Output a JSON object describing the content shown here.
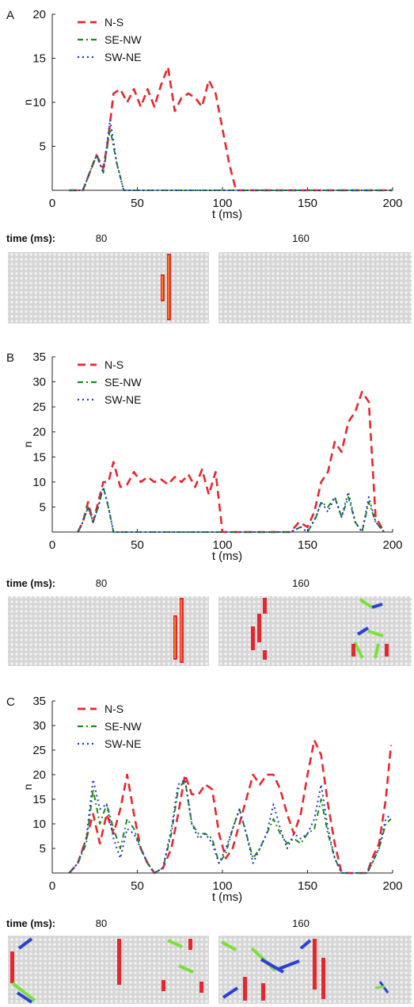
{
  "colors": {
    "ns": "#e8262d",
    "senw": "#1a8a1a",
    "swne": "#2236c8",
    "lattice_bg": "#d6d6d6",
    "lattice_dot": "#f2f2f2",
    "seg_orange": "#f4a11c",
    "seg_green": "#7be03a",
    "seg_blue": "#2a3fd6"
  },
  "time_label": "time (ms):",
  "chart_data": [
    {
      "type": "line",
      "panel_letter": "A",
      "xlabel": "t (ms)",
      "ylabel": "n",
      "xlim": [
        0,
        200
      ],
      "ylim": [
        0,
        20
      ],
      "xticks": [
        0,
        50,
        100,
        150,
        200
      ],
      "yticks": [
        5,
        10,
        15,
        20
      ],
      "grid": false,
      "legend_position": "top-left",
      "snapshot_times": [
        "80",
        "160"
      ],
      "series": [
        {
          "name": "N-S",
          "color": "#e8262d",
          "dash": "10,6",
          "points": [
            [
              10,
              0
            ],
            [
              18,
              0
            ],
            [
              22,
              2
            ],
            [
              26,
              4
            ],
            [
              30,
              2.5
            ],
            [
              33,
              6
            ],
            [
              36,
              11
            ],
            [
              40,
              11.5
            ],
            [
              44,
              10
            ],
            [
              48,
              11.5
            ],
            [
              52,
              9.5
            ],
            [
              56,
              11.5
            ],
            [
              60,
              9.5
            ],
            [
              64,
              12
            ],
            [
              68,
              14
            ],
            [
              72,
              9
            ],
            [
              76,
              10.5
            ],
            [
              80,
              11
            ],
            [
              84,
              10.5
            ],
            [
              88,
              9.5
            ],
            [
              92,
              12.5
            ],
            [
              96,
              11
            ],
            [
              100,
              7
            ],
            [
              104,
              3
            ],
            [
              108,
              0
            ],
            [
              120,
              0
            ],
            [
              200,
              0
            ]
          ]
        },
        {
          "name": "SE-NW",
          "color": "#1a8a1a",
          "dash": "7,4,2,4",
          "points": [
            [
              10,
              0
            ],
            [
              18,
              0
            ],
            [
              22,
              2
            ],
            [
              26,
              4
            ],
            [
              30,
              2
            ],
            [
              34,
              7
            ],
            [
              38,
              3
            ],
            [
              42,
              0
            ],
            [
              200,
              0
            ]
          ]
        },
        {
          "name": "SW-NE",
          "color": "#2236c8",
          "dash": "2,4",
          "points": [
            [
              10,
              0
            ],
            [
              18,
              0
            ],
            [
              22,
              2
            ],
            [
              26,
              4
            ],
            [
              30,
              2
            ],
            [
              34,
              8
            ],
            [
              38,
              3
            ],
            [
              42,
              0
            ],
            [
              200,
              0
            ]
          ]
        }
      ]
    },
    {
      "type": "line",
      "panel_letter": "B",
      "xlabel": "t (ms)",
      "ylabel": "n",
      "xlim": [
        0,
        200
      ],
      "ylim": [
        0,
        35
      ],
      "xticks": [
        0,
        50,
        100,
        150,
        200
      ],
      "yticks": [
        5,
        10,
        15,
        20,
        25,
        30,
        35
      ],
      "grid": false,
      "legend_position": "top-left",
      "snapshot_times": [
        "80",
        "160"
      ],
      "series": [
        {
          "name": "N-S",
          "color": "#e8262d",
          "dash": "10,6",
          "points": [
            [
              15,
              0
            ],
            [
              18,
              2
            ],
            [
              21,
              6
            ],
            [
              24,
              2
            ],
            [
              27,
              6
            ],
            [
              30,
              10
            ],
            [
              33,
              10
            ],
            [
              36,
              14
            ],
            [
              40,
              9
            ],
            [
              44,
              9.5
            ],
            [
              48,
              12
            ],
            [
              52,
              10
            ],
            [
              56,
              11
            ],
            [
              60,
              10
            ],
            [
              64,
              10.5
            ],
            [
              68,
              9.5
            ],
            [
              72,
              11
            ],
            [
              76,
              10
            ],
            [
              80,
              11.5
            ],
            [
              84,
              9
            ],
            [
              88,
              12.5
            ],
            [
              92,
              7.5
            ],
            [
              96,
              12
            ],
            [
              100,
              0
            ],
            [
              140,
              0
            ],
            [
              145,
              2
            ],
            [
              150,
              1
            ],
            [
              154,
              4
            ],
            [
              158,
              10
            ],
            [
              162,
              12
            ],
            [
              166,
              18
            ],
            [
              170,
              16
            ],
            [
              174,
              22
            ],
            [
              178,
              24
            ],
            [
              182,
              28
            ],
            [
              186,
              26
            ],
            [
              190,
              3
            ],
            [
              195,
              0
            ]
          ]
        },
        {
          "name": "SE-NW",
          "color": "#1a8a1a",
          "dash": "7,4,2,4",
          "points": [
            [
              15,
              0
            ],
            [
              18,
              2
            ],
            [
              21,
              5
            ],
            [
              24,
              2
            ],
            [
              27,
              5
            ],
            [
              30,
              9
            ],
            [
              33,
              5
            ],
            [
              36,
              0
            ],
            [
              140,
              0
            ],
            [
              146,
              1
            ],
            [
              150,
              0
            ],
            [
              155,
              3
            ],
            [
              158,
              6
            ],
            [
              162,
              5
            ],
            [
              166,
              7
            ],
            [
              170,
              3
            ],
            [
              174,
              7
            ],
            [
              178,
              2
            ],
            [
              182,
              0
            ],
            [
              186,
              6
            ],
            [
              190,
              2
            ],
            [
              195,
              0
            ]
          ]
        },
        {
          "name": "SW-NE",
          "color": "#2236c8",
          "dash": "2,4",
          "points": [
            [
              15,
              0
            ],
            [
              18,
              2
            ],
            [
              21,
              5
            ],
            [
              24,
              2
            ],
            [
              27,
              5
            ],
            [
              30,
              9
            ],
            [
              33,
              5
            ],
            [
              36,
              0
            ],
            [
              140,
              0
            ],
            [
              146,
              1
            ],
            [
              150,
              0
            ],
            [
              155,
              3
            ],
            [
              158,
              6
            ],
            [
              162,
              4
            ],
            [
              166,
              7
            ],
            [
              170,
              3
            ],
            [
              174,
              8
            ],
            [
              178,
              2
            ],
            [
              182,
              0
            ],
            [
              186,
              7
            ],
            [
              190,
              2
            ],
            [
              195,
              0
            ]
          ]
        }
      ]
    },
    {
      "type": "line",
      "panel_letter": "C",
      "xlabel": "t (ms)",
      "ylabel": "n",
      "xlim": [
        0,
        200
      ],
      "ylim": [
        0,
        35
      ],
      "xticks": [
        0,
        50,
        100,
        150,
        200
      ],
      "yticks": [
        5,
        10,
        15,
        20,
        25,
        30,
        35
      ],
      "grid": false,
      "legend_position": "top-left",
      "snapshot_times": [
        "80",
        "160"
      ],
      "series": [
        {
          "name": "N-S",
          "color": "#e8262d",
          "dash": "10,6",
          "points": [
            [
              10,
              0
            ],
            [
              15,
              2
            ],
            [
              20,
              7
            ],
            [
              24,
              12
            ],
            [
              28,
              6
            ],
            [
              32,
              12
            ],
            [
              36,
              8
            ],
            [
              40,
              13
            ],
            [
              44,
              20
            ],
            [
              48,
              12
            ],
            [
              52,
              5
            ],
            [
              56,
              2
            ],
            [
              60,
              0
            ],
            [
              65,
              1
            ],
            [
              70,
              5
            ],
            [
              74,
              12
            ],
            [
              78,
              20
            ],
            [
              82,
              16
            ],
            [
              86,
              16
            ],
            [
              90,
              18
            ],
            [
              94,
              17
            ],
            [
              98,
              8
            ],
            [
              102,
              3
            ],
            [
              106,
              5
            ],
            [
              110,
              10
            ],
            [
              114,
              15
            ],
            [
              118,
              20
            ],
            [
              122,
              18
            ],
            [
              126,
              20
            ],
            [
              130,
              20
            ],
            [
              134,
              17
            ],
            [
              138,
              12
            ],
            [
              142,
              8
            ],
            [
              146,
              12
            ],
            [
              150,
              20
            ],
            [
              154,
              27
            ],
            [
              158,
              24
            ],
            [
              162,
              14
            ],
            [
              166,
              6
            ],
            [
              170,
              0
            ],
            [
              185,
              0
            ],
            [
              188,
              3
            ],
            [
              192,
              6
            ],
            [
              196,
              15
            ],
            [
              199,
              26
            ]
          ]
        },
        {
          "name": "SE-NW",
          "color": "#1a8a1a",
          "dash": "7,4,2,4",
          "points": [
            [
              10,
              0
            ],
            [
              15,
              2
            ],
            [
              20,
              6
            ],
            [
              24,
              17
            ],
            [
              28,
              10
            ],
            [
              32,
              14
            ],
            [
              36,
              9
            ],
            [
              40,
              5
            ],
            [
              44,
              11
            ],
            [
              48,
              9
            ],
            [
              52,
              5
            ],
            [
              56,
              2
            ],
            [
              60,
              0
            ],
            [
              65,
              1
            ],
            [
              70,
              8
            ],
            [
              74,
              17
            ],
            [
              78,
              19
            ],
            [
              82,
              10
            ],
            [
              86,
              8
            ],
            [
              90,
              8
            ],
            [
              94,
              7
            ],
            [
              98,
              2
            ],
            [
              102,
              4
            ],
            [
              106,
              9
            ],
            [
              110,
              13
            ],
            [
              114,
              8
            ],
            [
              118,
              3
            ],
            [
              122,
              5
            ],
            [
              126,
              8
            ],
            [
              130,
              11
            ],
            [
              134,
              8
            ],
            [
              138,
              6
            ],
            [
              142,
              7
            ],
            [
              146,
              6
            ],
            [
              150,
              8
            ],
            [
              154,
              9
            ],
            [
              158,
              15
            ],
            [
              162,
              8
            ],
            [
              166,
              3
            ],
            [
              170,
              0
            ],
            [
              185,
              0
            ],
            [
              188,
              2
            ],
            [
              192,
              5
            ],
            [
              196,
              10
            ],
            [
              199,
              11
            ]
          ]
        },
        {
          "name": "SW-NE",
          "color": "#2236c8",
          "dash": "2,4",
          "points": [
            [
              10,
              0
            ],
            [
              15,
              2
            ],
            [
              20,
              7
            ],
            [
              24,
              19
            ],
            [
              28,
              13
            ],
            [
              32,
              14
            ],
            [
              36,
              7
            ],
            [
              40,
              3
            ],
            [
              44,
              9
            ],
            [
              48,
              8
            ],
            [
              52,
              5
            ],
            [
              56,
              2
            ],
            [
              60,
              0
            ],
            [
              65,
              1
            ],
            [
              70,
              9
            ],
            [
              74,
              18
            ],
            [
              78,
              19
            ],
            [
              82,
              10
            ],
            [
              86,
              7
            ],
            [
              90,
              8
            ],
            [
              94,
              6
            ],
            [
              98,
              2
            ],
            [
              102,
              5
            ],
            [
              106,
              9
            ],
            [
              110,
              13
            ],
            [
              114,
              8
            ],
            [
              118,
              2
            ],
            [
              122,
              5
            ],
            [
              126,
              8
            ],
            [
              130,
              14
            ],
            [
              134,
              9
            ],
            [
              138,
              5
            ],
            [
              142,
              8
            ],
            [
              146,
              7
            ],
            [
              150,
              8
            ],
            [
              154,
              11
            ],
            [
              158,
              18
            ],
            [
              162,
              9
            ],
            [
              166,
              3
            ],
            [
              170,
              0
            ],
            [
              185,
              0
            ],
            [
              188,
              2
            ],
            [
              192,
              5
            ],
            [
              196,
              11
            ],
            [
              199,
              12
            ]
          ]
        }
      ]
    }
  ]
}
